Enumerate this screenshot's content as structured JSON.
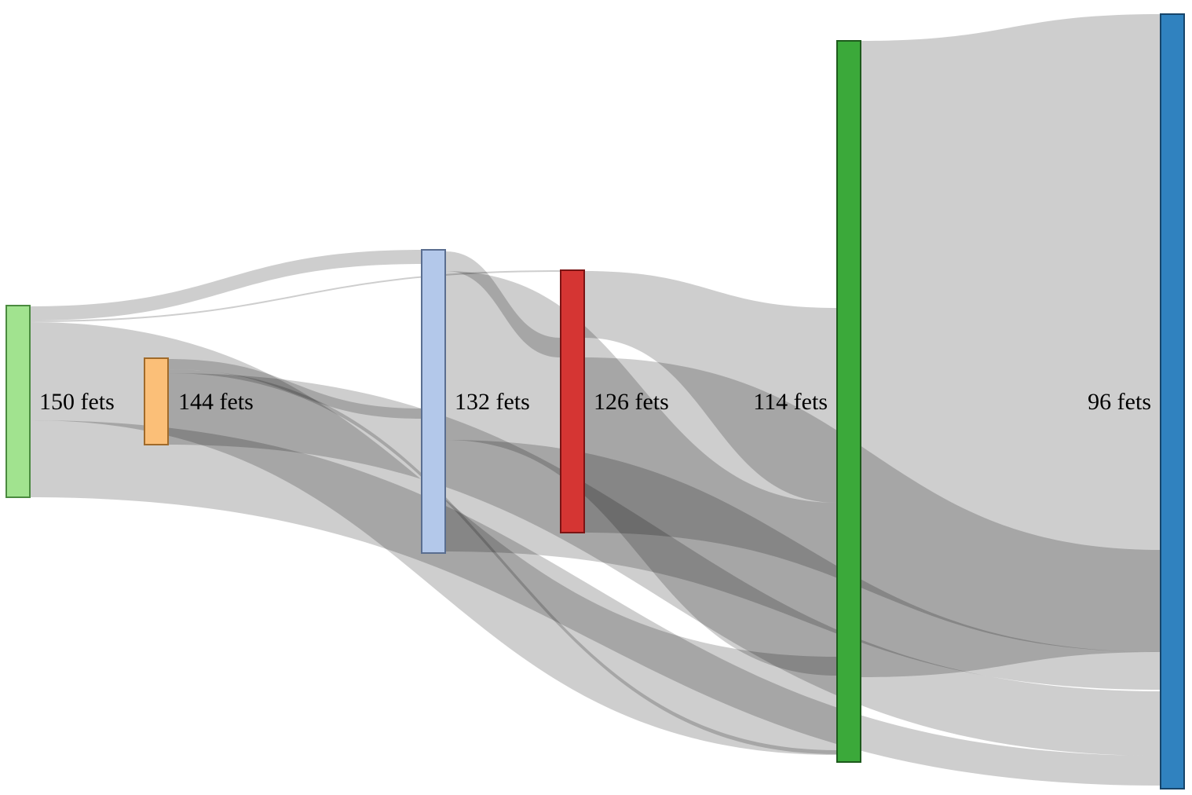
{
  "nodes": [
    {
      "id": "n150",
      "label": "150 fets",
      "color": "#a1e38f",
      "stroke": "#4a8a3f"
    },
    {
      "id": "n144",
      "label": "144 fets",
      "color": "#fbbf78",
      "stroke": "#a06a2a"
    },
    {
      "id": "n132",
      "label": "132 fets",
      "color": "#b3c8ea",
      "stroke": "#5a6e90"
    },
    {
      "id": "n126",
      "label": "126 fets",
      "color": "#d53533",
      "stroke": "#7a1414"
    },
    {
      "id": "n114",
      "label": "114 fets",
      "color": "#3ba93a",
      "stroke": "#1d5a1c"
    },
    {
      "id": "n96",
      "label": "96 fets",
      "color": "#3082bf",
      "stroke": "#17456a"
    }
  ],
  "links": [
    {
      "source": "n150",
      "target": "n132",
      "value": 1
    },
    {
      "source": "n150",
      "target": "n126",
      "value": 1
    },
    {
      "source": "n150",
      "target": "n114",
      "value": 1
    },
    {
      "source": "n150",
      "target": "n96",
      "value": 1
    },
    {
      "source": "n144",
      "target": "n132",
      "value": 1
    },
    {
      "source": "n144",
      "target": "n114",
      "value": 1
    },
    {
      "source": "n144",
      "target": "n96",
      "value": 1
    },
    {
      "source": "n132",
      "target": "n126",
      "value": 1
    },
    {
      "source": "n132",
      "target": "n114",
      "value": 1
    },
    {
      "source": "n132",
      "target": "n96",
      "value": 1
    },
    {
      "source": "n126",
      "target": "n114",
      "value": 1
    },
    {
      "source": "n126",
      "target": "n96",
      "value": 1
    },
    {
      "source": "n114",
      "target": "n96",
      "value": 1
    }
  ],
  "link_color": "#bdbdbd"
}
